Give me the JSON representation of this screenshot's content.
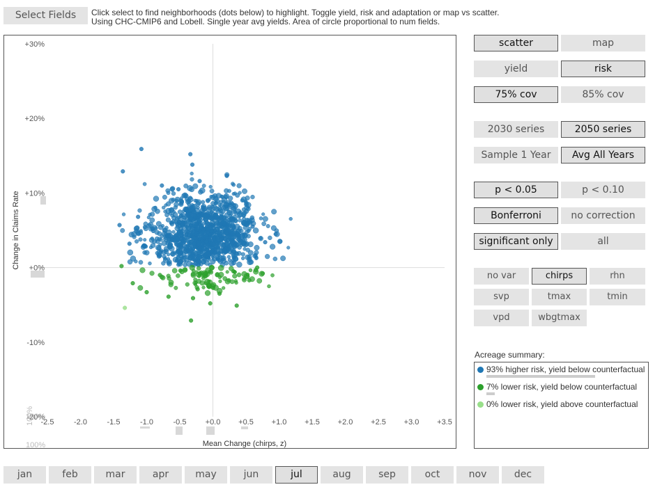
{
  "toolbar": {
    "select_fields_label": "Select Fields",
    "intro_line1": "Click select to find neighborhoods (dots below) to highlight. Toggle yield, risk and adaptation or map vs scatter.",
    "intro_line2": "Using CHC-CMIP6 and Lobell. Single year avg yields. Area of circle proportional to num fields."
  },
  "colors": {
    "higher_risk": "#1f77b4",
    "lower_risk_below": "#2ca02c",
    "lower_risk_above": "#98df8a",
    "button_bg": "#e4e4e4",
    "selected_border": "#555555"
  },
  "controls": {
    "view": [
      {
        "label": "scatter",
        "selected": true
      },
      {
        "label": "map",
        "selected": false
      }
    ],
    "metric": [
      {
        "label": "yield",
        "selected": false
      },
      {
        "label": "risk",
        "selected": true
      }
    ],
    "coverage": [
      {
        "label": "75% cov",
        "selected": true
      },
      {
        "label": "85% cov",
        "selected": false
      }
    ],
    "series": [
      {
        "label": "2030 series",
        "selected": false
      },
      {
        "label": "2050 series",
        "selected": true
      }
    ],
    "sampling": [
      {
        "label": "Sample 1 Year",
        "selected": false
      },
      {
        "label": "Avg All Years",
        "selected": true
      }
    ],
    "pvalue": [
      {
        "label": "p <  0.05",
        "selected": true
      },
      {
        "label": "p <  0.10",
        "selected": false
      }
    ],
    "correction": [
      {
        "label": "Bonferroni",
        "selected": true
      },
      {
        "label": "no correction",
        "selected": false
      }
    ],
    "filter": [
      {
        "label": "significant only",
        "selected": true
      },
      {
        "label": "all",
        "selected": false
      }
    ]
  },
  "variables": [
    {
      "label": "no var",
      "selected": false
    },
    {
      "label": "chirps",
      "selected": true
    },
    {
      "label": "rhn",
      "selected": false
    },
    {
      "label": "svp",
      "selected": false
    },
    {
      "label": "tmax",
      "selected": false
    },
    {
      "label": "tmin",
      "selected": false
    },
    {
      "label": "vpd",
      "selected": false
    },
    {
      "label": "wbgtmax",
      "selected": false
    }
  ],
  "summary": {
    "title": "Acreage summary:",
    "items": [
      {
        "label": "93% higher risk, yield below counterfactual",
        "percent": 93
      },
      {
        "label": "7% lower risk, yield below counterfactual",
        "percent": 7
      },
      {
        "label": "0% lower risk, yield above counterfactual",
        "percent": 0
      }
    ]
  },
  "months": [
    {
      "label": "jan",
      "selected": false
    },
    {
      "label": "feb",
      "selected": false
    },
    {
      "label": "mar",
      "selected": false
    },
    {
      "label": "apr",
      "selected": false
    },
    {
      "label": "may",
      "selected": false
    },
    {
      "label": "jun",
      "selected": false
    },
    {
      "label": "jul",
      "selected": true
    },
    {
      "label": "aug",
      "selected": false
    },
    {
      "label": "sep",
      "selected": false
    },
    {
      "label": "oct",
      "selected": false
    },
    {
      "label": "nov",
      "selected": false
    },
    {
      "label": "dec",
      "selected": false
    }
  ],
  "chart_data": {
    "type": "scatter",
    "xlabel": "Mean Change (chirps, z)",
    "ylabel": "Change in Claims Rate",
    "x_tick_labels": [
      "-2.5",
      "-2.0",
      "-1.5",
      "-1.0",
      "-0.5",
      "+0.0",
      "+0.5",
      "+1.0",
      "+1.5",
      "+2.0",
      "+2.5",
      "+3.0",
      "+3.5"
    ],
    "y_tick_labels": [
      "+30%",
      "+20%",
      "+10%",
      "+0%",
      "-10%",
      "-20%"
    ],
    "xlim": [
      -2.5,
      3.5
    ],
    "ylim": [
      -20,
      30
    ],
    "x_hist_max_label": "100%",
    "y_hist_max_label": "100%",
    "y_hist_top_label": "100%",
    "series": [
      {
        "name": "higher risk, yield below counterfactual",
        "color": "#1f77b4",
        "points": [
          [
            -1.08,
            15.9
          ],
          [
            -1.36,
            12.9
          ],
          [
            -0.34,
            15.2
          ],
          [
            -0.31,
            13.8
          ],
          [
            0.21,
            12.3
          ],
          [
            -0.77,
            11.0
          ],
          [
            -0.52,
            10.5
          ],
          [
            -0.2,
            11.6
          ],
          [
            -1.41,
            5.7
          ],
          [
            -0.9,
            4.9
          ],
          [
            -1.26,
            3.2
          ],
          [
            -1.13,
            6.8
          ],
          [
            0.6,
            5.5
          ],
          [
            0.79,
            3.4
          ],
          [
            -0.39,
            7.0
          ],
          [
            0.3,
            6.2
          ],
          [
            0.03,
            2.5
          ],
          [
            -0.5,
            1.8
          ],
          [
            -0.15,
            8.1
          ],
          [
            0.4,
            4.0
          ]
        ],
        "cloud": {
          "cx": -0.15,
          "cy": 4.3,
          "sx": 0.42,
          "sy": 2.8,
          "n": 1050,
          "ymin": 0.3
        }
      },
      {
        "name": "lower risk, yield below counterfactual",
        "color": "#2ca02c",
        "points": [
          [
            -1.38,
            0.2
          ],
          [
            -1.21,
            -2.1
          ],
          [
            -1.0,
            -3.3
          ],
          [
            -0.67,
            -3.9
          ],
          [
            -0.33,
            -7.1
          ],
          [
            -0.04,
            -4.8
          ],
          [
            0.36,
            -5.1
          ],
          [
            0.67,
            0.0
          ],
          [
            -0.23,
            -2.9
          ],
          [
            0.31,
            -0.5
          ],
          [
            -0.8,
            -1.0
          ],
          [
            -0.49,
            -0.4
          ],
          [
            0.1,
            -3.5
          ],
          [
            0.55,
            -1.7
          ],
          [
            -0.3,
            -4.1
          ]
        ],
        "cloud": {
          "cx": -0.1,
          "cy": -1.2,
          "sx": 0.45,
          "sy": 1.1,
          "n": 95,
          "ymax": 0
        }
      },
      {
        "name": "lower risk, yield above counterfactual",
        "color": "#98df8a",
        "points": [
          [
            -1.33,
            -5.4
          ]
        ]
      }
    ]
  }
}
